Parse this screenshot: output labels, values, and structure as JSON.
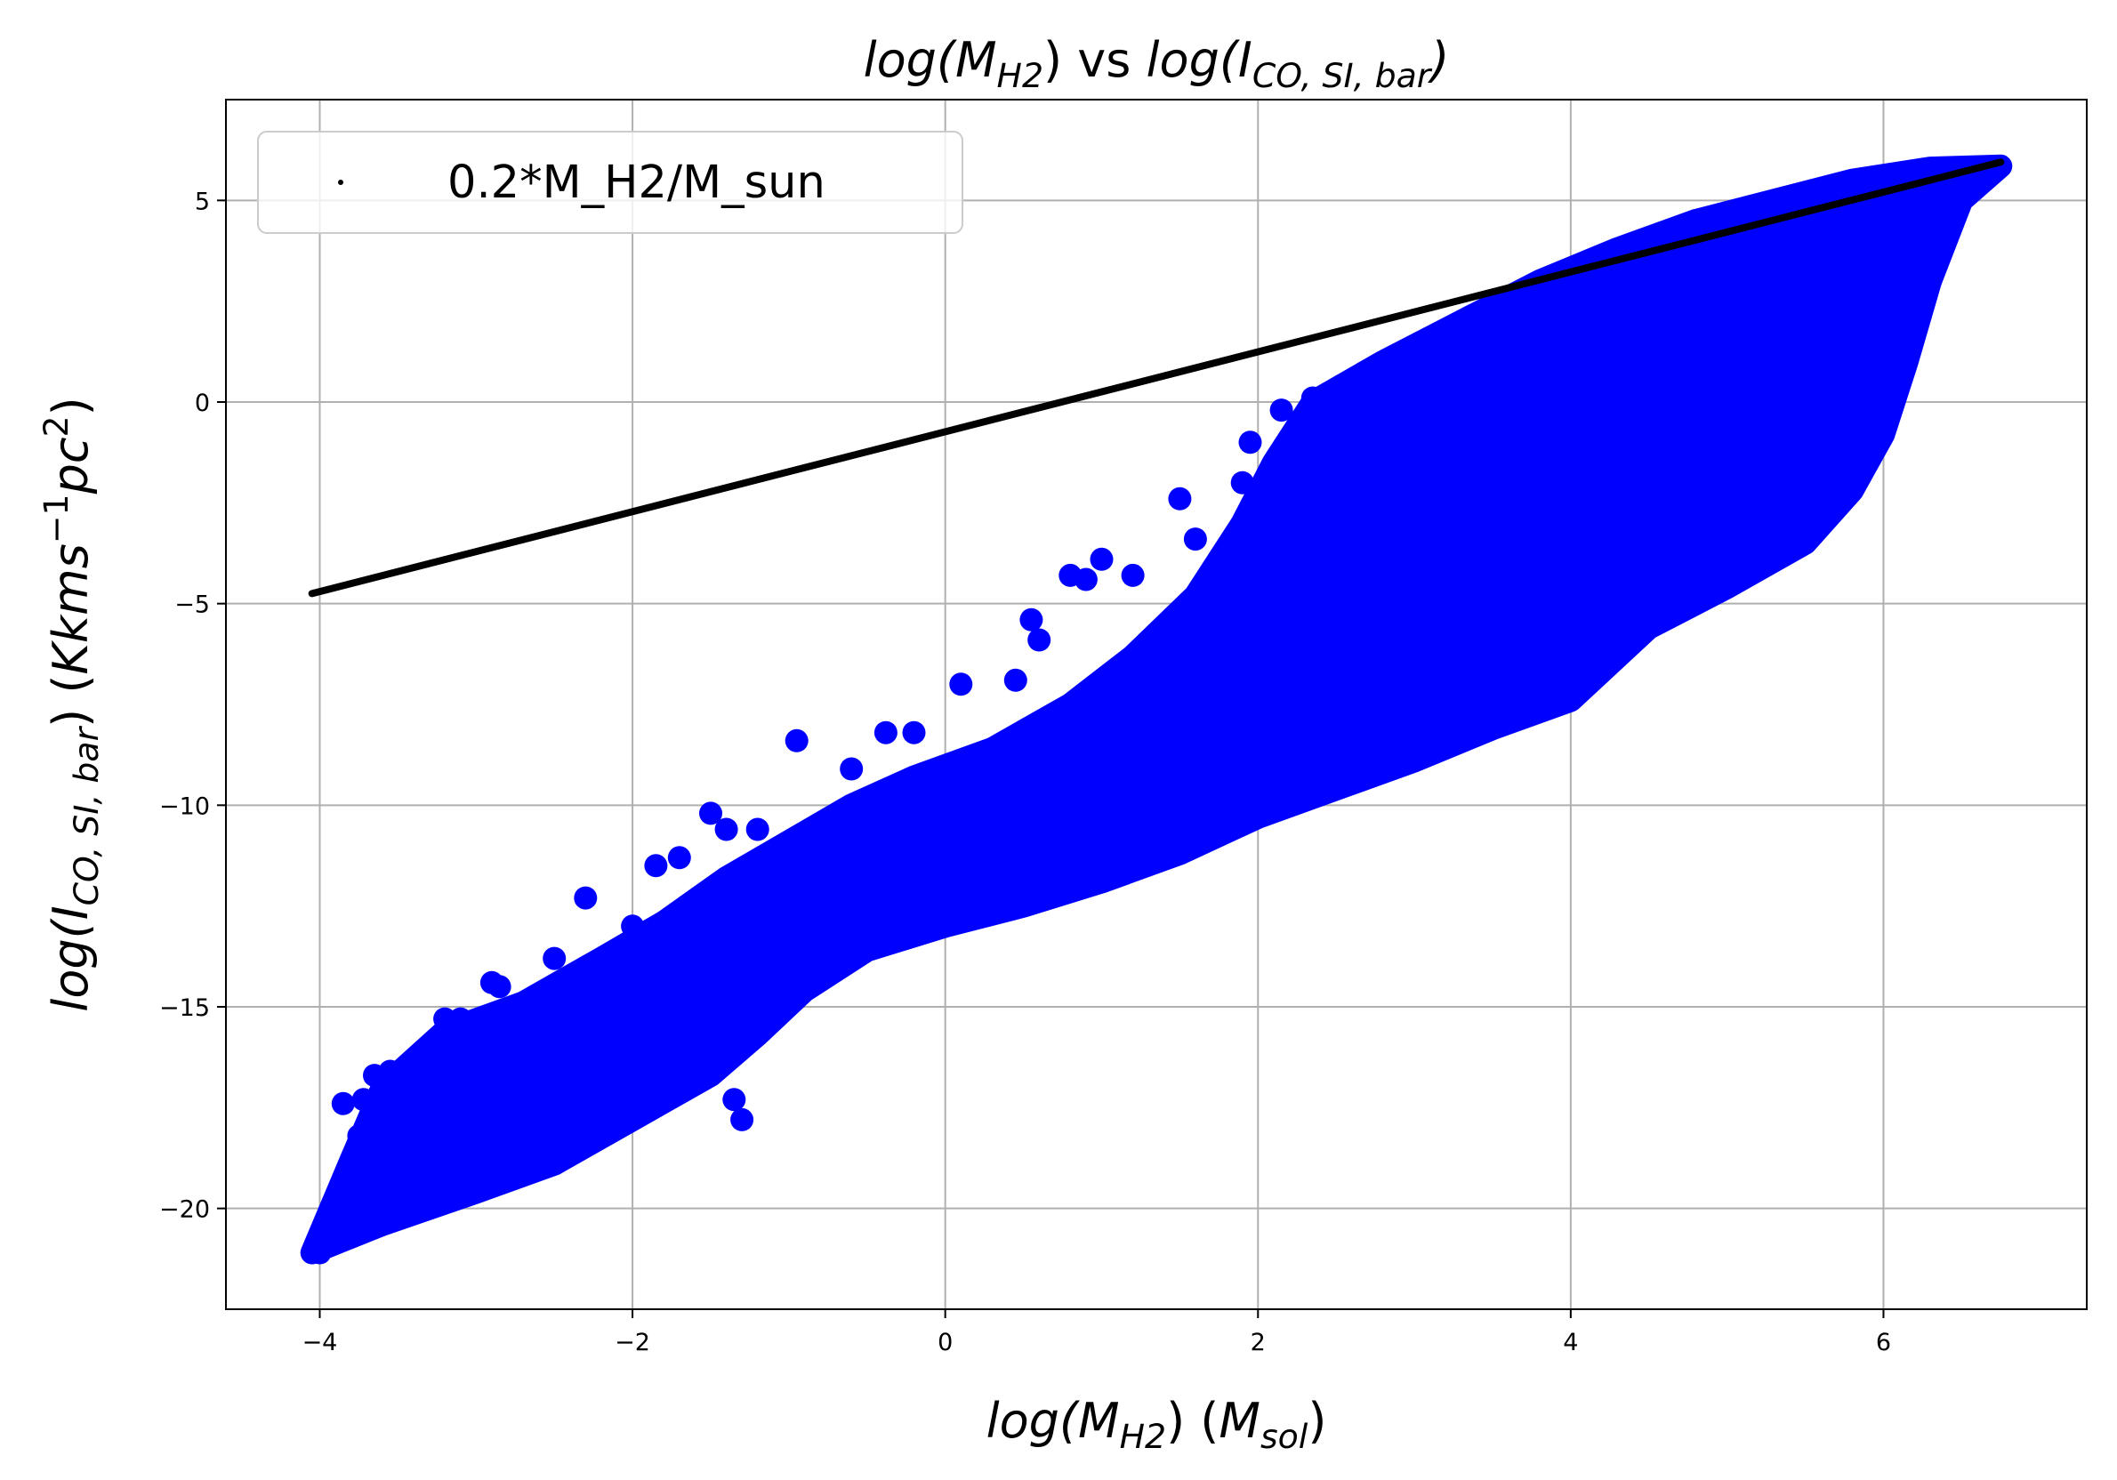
{
  "chart_data": {
    "type": "scatter",
    "title": {
      "parts": [
        {
          "text": "log(M",
          "italic": true
        },
        {
          "text": "H2",
          "italic": true,
          "sub": true
        },
        {
          "text": ") vs ",
          "italic": false
        },
        {
          "text": "log(I",
          "italic": true
        },
        {
          "text": "CO, SI, bar",
          "italic": true,
          "sub": true
        },
        {
          "text": ")",
          "italic": true
        }
      ]
    },
    "xlabel": {
      "parts": [
        {
          "text": "log(M",
          "italic": true
        },
        {
          "text": "H2",
          "italic": true,
          "sub": true
        },
        {
          "text": ") (",
          "italic": false
        },
        {
          "text": "M",
          "italic": true
        },
        {
          "text": "sol",
          "italic": true,
          "sub": true
        },
        {
          "text": ")",
          "italic": false
        }
      ]
    },
    "ylabel": {
      "parts": [
        {
          "text": "log(I",
          "italic": true
        },
        {
          "text": "CO, SI, bar",
          "italic": true,
          "sub": true
        },
        {
          "text": ") (",
          "italic": false
        },
        {
          "text": "Kkms",
          "italic": true
        },
        {
          "text": "−1",
          "italic": false,
          "sup": true
        },
        {
          "text": "pc",
          "italic": true
        },
        {
          "text": "2",
          "italic": false,
          "sup": true
        },
        {
          "text": ")",
          "italic": false
        }
      ]
    },
    "xlim": [
      -4.6,
      7.3
    ],
    "ylim": [
      -22.5,
      7.5
    ],
    "xticks": [
      -4,
      -2,
      0,
      2,
      4,
      6
    ],
    "yticks": [
      -20,
      -15,
      -10,
      -5,
      0,
      5
    ],
    "xtick_labels": [
      "−4",
      "−2",
      "0",
      "2",
      "4",
      "6"
    ],
    "ytick_labels": [
      "−20",
      "−15",
      "−10",
      "−5",
      "0",
      "5"
    ],
    "grid": true,
    "legend_position": "top-left",
    "series": [
      {
        "name": "",
        "color": "#0000ff",
        "marker": "large-dot",
        "band": {
          "lower": [
            [
              -4.05,
              -21.1
            ],
            [
              -3.6,
              -20.4
            ],
            [
              -3.0,
              -19.6
            ],
            [
              -2.5,
              -18.9
            ],
            [
              -2.0,
              -17.8
            ],
            [
              -1.5,
              -16.7
            ],
            [
              -1.2,
              -15.7
            ],
            [
              -0.9,
              -14.6
            ],
            [
              -0.5,
              -13.6
            ],
            [
              0.0,
              -13.0
            ],
            [
              0.5,
              -12.5
            ],
            [
              1.0,
              -11.9
            ],
            [
              1.5,
              -11.2
            ],
            [
              2.0,
              -10.3
            ],
            [
              2.5,
              -9.6
            ],
            [
              3.0,
              -8.9
            ],
            [
              3.5,
              -8.1
            ],
            [
              4.0,
              -7.4
            ],
            [
              4.5,
              -5.6
            ],
            [
              5.0,
              -4.6
            ],
            [
              5.5,
              -3.5
            ],
            [
              5.8,
              -2.2
            ],
            [
              6.0,
              -0.8
            ],
            [
              6.15,
              1.0
            ],
            [
              6.3,
              3.0
            ],
            [
              6.5,
              5.0
            ],
            [
              6.75,
              5.85
            ]
          ],
          "upper": [
            [
              -4.05,
              -21.1
            ],
            [
              -3.8,
              -18.8
            ],
            [
              -3.6,
              -17.0
            ],
            [
              -3.2,
              -15.6
            ],
            [
              -2.7,
              -14.9
            ],
            [
              -2.2,
              -13.8
            ],
            [
              -1.8,
              -12.9
            ],
            [
              -1.4,
              -11.8
            ],
            [
              -1.0,
              -10.9
            ],
            [
              -0.6,
              -10.0
            ],
            [
              -0.2,
              -9.3
            ],
            [
              0.3,
              -8.6
            ],
            [
              0.8,
              -7.5
            ],
            [
              1.2,
              -6.3
            ],
            [
              1.6,
              -4.8
            ],
            [
              1.9,
              -3.0
            ],
            [
              2.1,
              -1.5
            ],
            [
              2.35,
              0.0
            ],
            [
              2.8,
              1.0
            ],
            [
              3.3,
              2.0
            ],
            [
              3.8,
              3.0
            ],
            [
              4.3,
              3.8
            ],
            [
              4.8,
              4.5
            ],
            [
              5.3,
              5.0
            ],
            [
              5.8,
              5.5
            ],
            [
              6.3,
              5.8
            ],
            [
              6.75,
              5.85
            ]
          ]
        },
        "outliers": [
          [
            -4.0,
            -21.1
          ],
          [
            -3.85,
            -17.4
          ],
          [
            -3.72,
            -17.3
          ],
          [
            -3.75,
            -18.2
          ],
          [
            -3.6,
            -18.8
          ],
          [
            -3.65,
            -16.7
          ],
          [
            -3.55,
            -16.6
          ],
          [
            -3.2,
            -15.3
          ],
          [
            -3.1,
            -15.3
          ],
          [
            -2.9,
            -14.4
          ],
          [
            -2.85,
            -14.5
          ],
          [
            -2.5,
            -13.8
          ],
          [
            -2.3,
            -12.3
          ],
          [
            -2.0,
            -13.0
          ],
          [
            -1.85,
            -11.5
          ],
          [
            -1.7,
            -11.3
          ],
          [
            -1.5,
            -10.2
          ],
          [
            -1.4,
            -10.6
          ],
          [
            -1.2,
            -10.6
          ],
          [
            -0.95,
            -8.4
          ],
          [
            -0.8,
            -10.5
          ],
          [
            -0.6,
            -9.1
          ],
          [
            -0.38,
            -8.2
          ],
          [
            -0.2,
            -8.2
          ],
          [
            0.1,
            -7.0
          ],
          [
            0.45,
            -6.9
          ],
          [
            0.55,
            -5.4
          ],
          [
            0.6,
            -5.9
          ],
          [
            0.8,
            -4.3
          ],
          [
            0.9,
            -4.4
          ],
          [
            1.0,
            -3.9
          ],
          [
            1.2,
            -4.3
          ],
          [
            1.5,
            -2.4
          ],
          [
            1.6,
            -3.4
          ],
          [
            1.9,
            -2.0
          ],
          [
            1.95,
            -1.0
          ],
          [
            2.15,
            -0.2
          ],
          [
            2.35,
            0.1
          ],
          [
            2.55,
            0.2
          ],
          [
            -1.3,
            -17.8
          ],
          [
            -1.35,
            -17.3
          ]
        ]
      },
      {
        "name": "0.2*M_H2/M_sun",
        "color": "#000000",
        "marker": "small-dot",
        "x_range": [
          -4.05,
          6.75
        ],
        "y_range": [
          -4.75,
          5.95
        ]
      }
    ]
  }
}
